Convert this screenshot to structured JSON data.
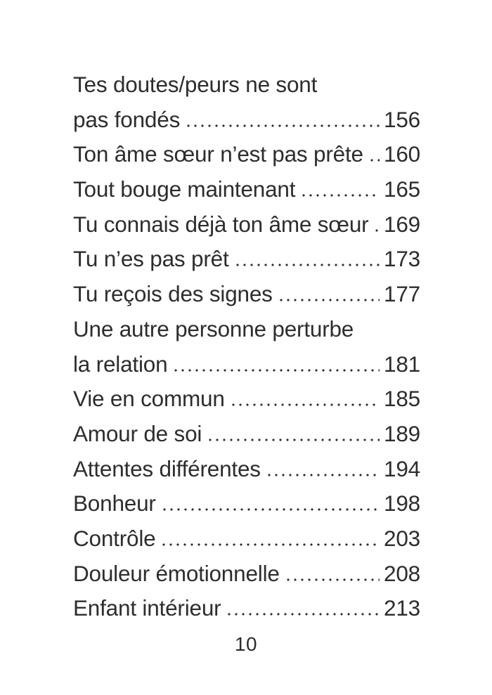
{
  "page": {
    "background_color": "#ffffff",
    "text_color": "#2d2d2d"
  },
  "toc": {
    "entries": [
      {
        "lines": [
          "Tes doutes/peurs ne sont",
          "pas fondés"
        ],
        "page": "156"
      },
      {
        "lines": [
          "Ton âme sœur n’est pas prête"
        ],
        "page": "160"
      },
      {
        "lines": [
          "Tout bouge maintenant"
        ],
        "page": "165"
      },
      {
        "lines": [
          "Tu connais déjà ton âme sœur"
        ],
        "page": "169"
      },
      {
        "lines": [
          "Tu n’es pas prêt"
        ],
        "page": "173"
      },
      {
        "lines": [
          "Tu reçois des signes"
        ],
        "page": "177"
      },
      {
        "lines": [
          "Une autre personne perturbe",
          "la relation"
        ],
        "page": "181"
      },
      {
        "lines": [
          "Vie en commun"
        ],
        "page": "185"
      },
      {
        "lines": [
          "Amour de soi"
        ],
        "page": "189"
      },
      {
        "lines": [
          "Attentes différentes"
        ],
        "page": "194"
      },
      {
        "lines": [
          "Bonheur"
        ],
        "page": "198"
      },
      {
        "lines": [
          "Contrôle"
        ],
        "page": "203"
      },
      {
        "lines": [
          "Douleur émotionnelle"
        ],
        "page": "208"
      },
      {
        "lines": [
          "Enfant intérieur"
        ],
        "page": "213"
      }
    ]
  },
  "footer": {
    "page_number": "10"
  }
}
